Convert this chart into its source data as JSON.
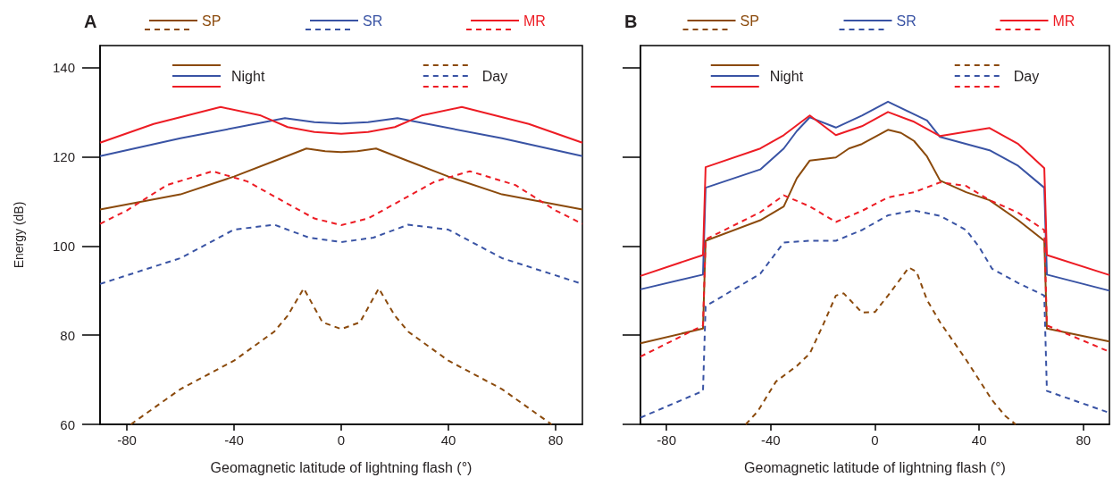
{
  "chart_data": [
    {
      "type": "line",
      "title": "A",
      "xlabel": "Geomagnetic latitude of lightning flash (°)",
      "ylabel": "Energy (dB)",
      "xlim": [
        -90,
        90
      ],
      "xticks": [
        -80,
        -40,
        0,
        40,
        80
      ],
      "ylim": [
        60,
        145
      ],
      "yticks": [
        60,
        80,
        100,
        120,
        140
      ],
      "legend": "top",
      "annotations": [
        "Night",
        "Day"
      ],
      "series": [
        {
          "name": "SP",
          "color": "#8b4a0c",
          "line_style": "solid",
          "x": [
            -90,
            -60,
            -40,
            -25,
            -13,
            -6,
            0,
            6,
            13,
            25,
            40,
            60,
            90
          ],
          "values": [
            108.2,
            111.6,
            115.6,
            119.1,
            121.9,
            121.3,
            121.1,
            121.3,
            121.9,
            119.1,
            115.6,
            111.6,
            108.2
          ]
        },
        {
          "color": "#8b4a0c",
          "line_style": "dashed",
          "x": [
            -78.5,
            -60,
            -40,
            -25,
            -20,
            -14,
            -7,
            0,
            7,
            14,
            20,
            25,
            40,
            60,
            78.5
          ],
          "values": [
            60,
            67.9,
            74.3,
            80.8,
            84.4,
            90.5,
            82.9,
            81.4,
            82.9,
            90.5,
            84.4,
            80.8,
            74.3,
            67.9,
            60
          ]
        },
        {
          "name": "SR",
          "color": "#3953a4",
          "line_style": "solid",
          "x": [
            -90,
            -60,
            -21,
            -10,
            0,
            10,
            21,
            60,
            90
          ],
          "values": [
            120.2,
            124.2,
            128.7,
            127.8,
            127.5,
            127.8,
            128.7,
            124.2,
            120.2
          ]
        },
        {
          "color": "#3953a4",
          "line_style": "dashed",
          "x": [
            -90,
            -60,
            -40,
            -25,
            -12,
            0,
            12,
            25,
            40,
            60,
            90
          ],
          "values": [
            91.5,
            97.3,
            103.7,
            104.8,
            101.9,
            100.9,
            101.9,
            104.8,
            103.7,
            97.3,
            91.5
          ]
        },
        {
          "name": "MR",
          "color": "#ed1c24",
          "line_style": "solid",
          "x": [
            -90,
            -70,
            -45,
            -30,
            -20,
            -10,
            0,
            10,
            20,
            30,
            45,
            70,
            90
          ],
          "values": [
            123.2,
            127.4,
            131.2,
            129.3,
            126.7,
            125.6,
            125.2,
            125.6,
            126.7,
            129.3,
            131.2,
            127.4,
            123.2
          ]
        },
        {
          "color": "#ed1c24",
          "line_style": "dashed",
          "x": [
            -90,
            -80,
            -65,
            -48,
            -35,
            -20,
            -10,
            0,
            10,
            20,
            35,
            48,
            65,
            80,
            90
          ],
          "values": [
            105.0,
            108.0,
            113.7,
            116.8,
            114.5,
            109.5,
            106.2,
            104.7,
            106.2,
            109.5,
            114.5,
            116.8,
            113.7,
            108.0,
            105.0
          ]
        }
      ]
    },
    {
      "type": "line",
      "title": "B",
      "xlabel": "Geomagnetic latitude of lightning flash (°)",
      "xlim": [
        -90,
        90
      ],
      "xticks": [
        -80,
        -40,
        0,
        40,
        80
      ],
      "ylim": [
        60,
        145
      ],
      "yticks": [
        60,
        80,
        100,
        120,
        140
      ],
      "tick_labels": "x",
      "legend": "top",
      "annotations": [
        "Night",
        "Day"
      ],
      "series": [
        {
          "name": "SP",
          "color": "#8b4a0c",
          "line_style": "solid",
          "x": [
            -90,
            -66,
            -65,
            -44,
            -35,
            -30,
            -25,
            -15,
            -10,
            -5,
            5,
            10,
            15,
            20,
            25,
            35,
            44,
            55,
            65,
            66,
            90
          ],
          "values": [
            78.2,
            81.5,
            101.2,
            105.8,
            108.9,
            115.2,
            119.2,
            119.9,
            121.9,
            122.9,
            126.1,
            125.4,
            123.6,
            120.1,
            114.7,
            112.1,
            110.3,
            105.8,
            101.2,
            81.5,
            78.6
          ]
        },
        {
          "color": "#8b4a0c",
          "line_style": "dashed",
          "x": [
            -49.6,
            -45,
            -38,
            -30,
            -25,
            -20,
            -15,
            -12,
            -5,
            0,
            5,
            10,
            13,
            16,
            20,
            25,
            35,
            45,
            50,
            54
          ],
          "values": [
            60,
            62.9,
            69.6,
            73.1,
            75.9,
            82.2,
            88.9,
            89.4,
            85.1,
            85.2,
            88.9,
            92.8,
            95.2,
            94.2,
            87.9,
            82.9,
            74.5,
            65.4,
            61.9,
            60
          ]
        },
        {
          "name": "SR",
          "color": "#3953a4",
          "line_style": "solid",
          "x": [
            -90,
            -66,
            -65,
            -44,
            -35,
            -30,
            -25,
            -15,
            -5,
            5,
            15,
            20,
            25,
            44,
            55,
            65,
            66,
            90
          ],
          "values": [
            90.3,
            93.6,
            113.1,
            117.2,
            121.9,
            125.8,
            128.9,
            126.6,
            129.3,
            132.4,
            129.6,
            128.2,
            124.5,
            121.5,
            118.0,
            113.1,
            93.6,
            90.0
          ]
        },
        {
          "color": "#3953a4",
          "line_style": "dashed",
          "x": [
            -90,
            -66,
            -65,
            -44,
            -35,
            -25,
            -15,
            -5,
            5,
            15,
            25,
            35,
            40,
            45,
            55,
            65,
            66,
            90
          ],
          "values": [
            61.5,
            67.5,
            86.5,
            93.8,
            100.8,
            101.2,
            101.2,
            103.6,
            106.9,
            108.0,
            106.8,
            103.6,
            99.8,
            94.9,
            91.7,
            88.9,
            67.5,
            62.6
          ]
        },
        {
          "name": "MR",
          "color": "#ed1c24",
          "line_style": "solid",
          "x": [
            -90,
            -66,
            -65,
            -44,
            -35,
            -25,
            -15,
            -5,
            5,
            15,
            25,
            44,
            55,
            65,
            66,
            90
          ],
          "values": [
            93.3,
            98.0,
            117.7,
            121.9,
            124.9,
            129.3,
            124.9,
            126.9,
            130.1,
            127.9,
            124.7,
            126.5,
            122.9,
            117.5,
            98.0,
            93.5
          ]
        },
        {
          "color": "#ed1c24",
          "line_style": "dashed",
          "x": [
            -90,
            -66,
            -65,
            -44,
            -35,
            -25,
            -15,
            -5,
            5,
            15,
            25,
            35,
            44,
            55,
            65,
            66,
            90
          ],
          "values": [
            75.2,
            82.2,
            101.5,
            107.6,
            111.4,
            108.9,
            105.4,
            107.9,
            110.9,
            112.1,
            114.3,
            113.5,
            110.3,
            107.5,
            103.6,
            82.2,
            76.3
          ]
        }
      ]
    }
  ]
}
